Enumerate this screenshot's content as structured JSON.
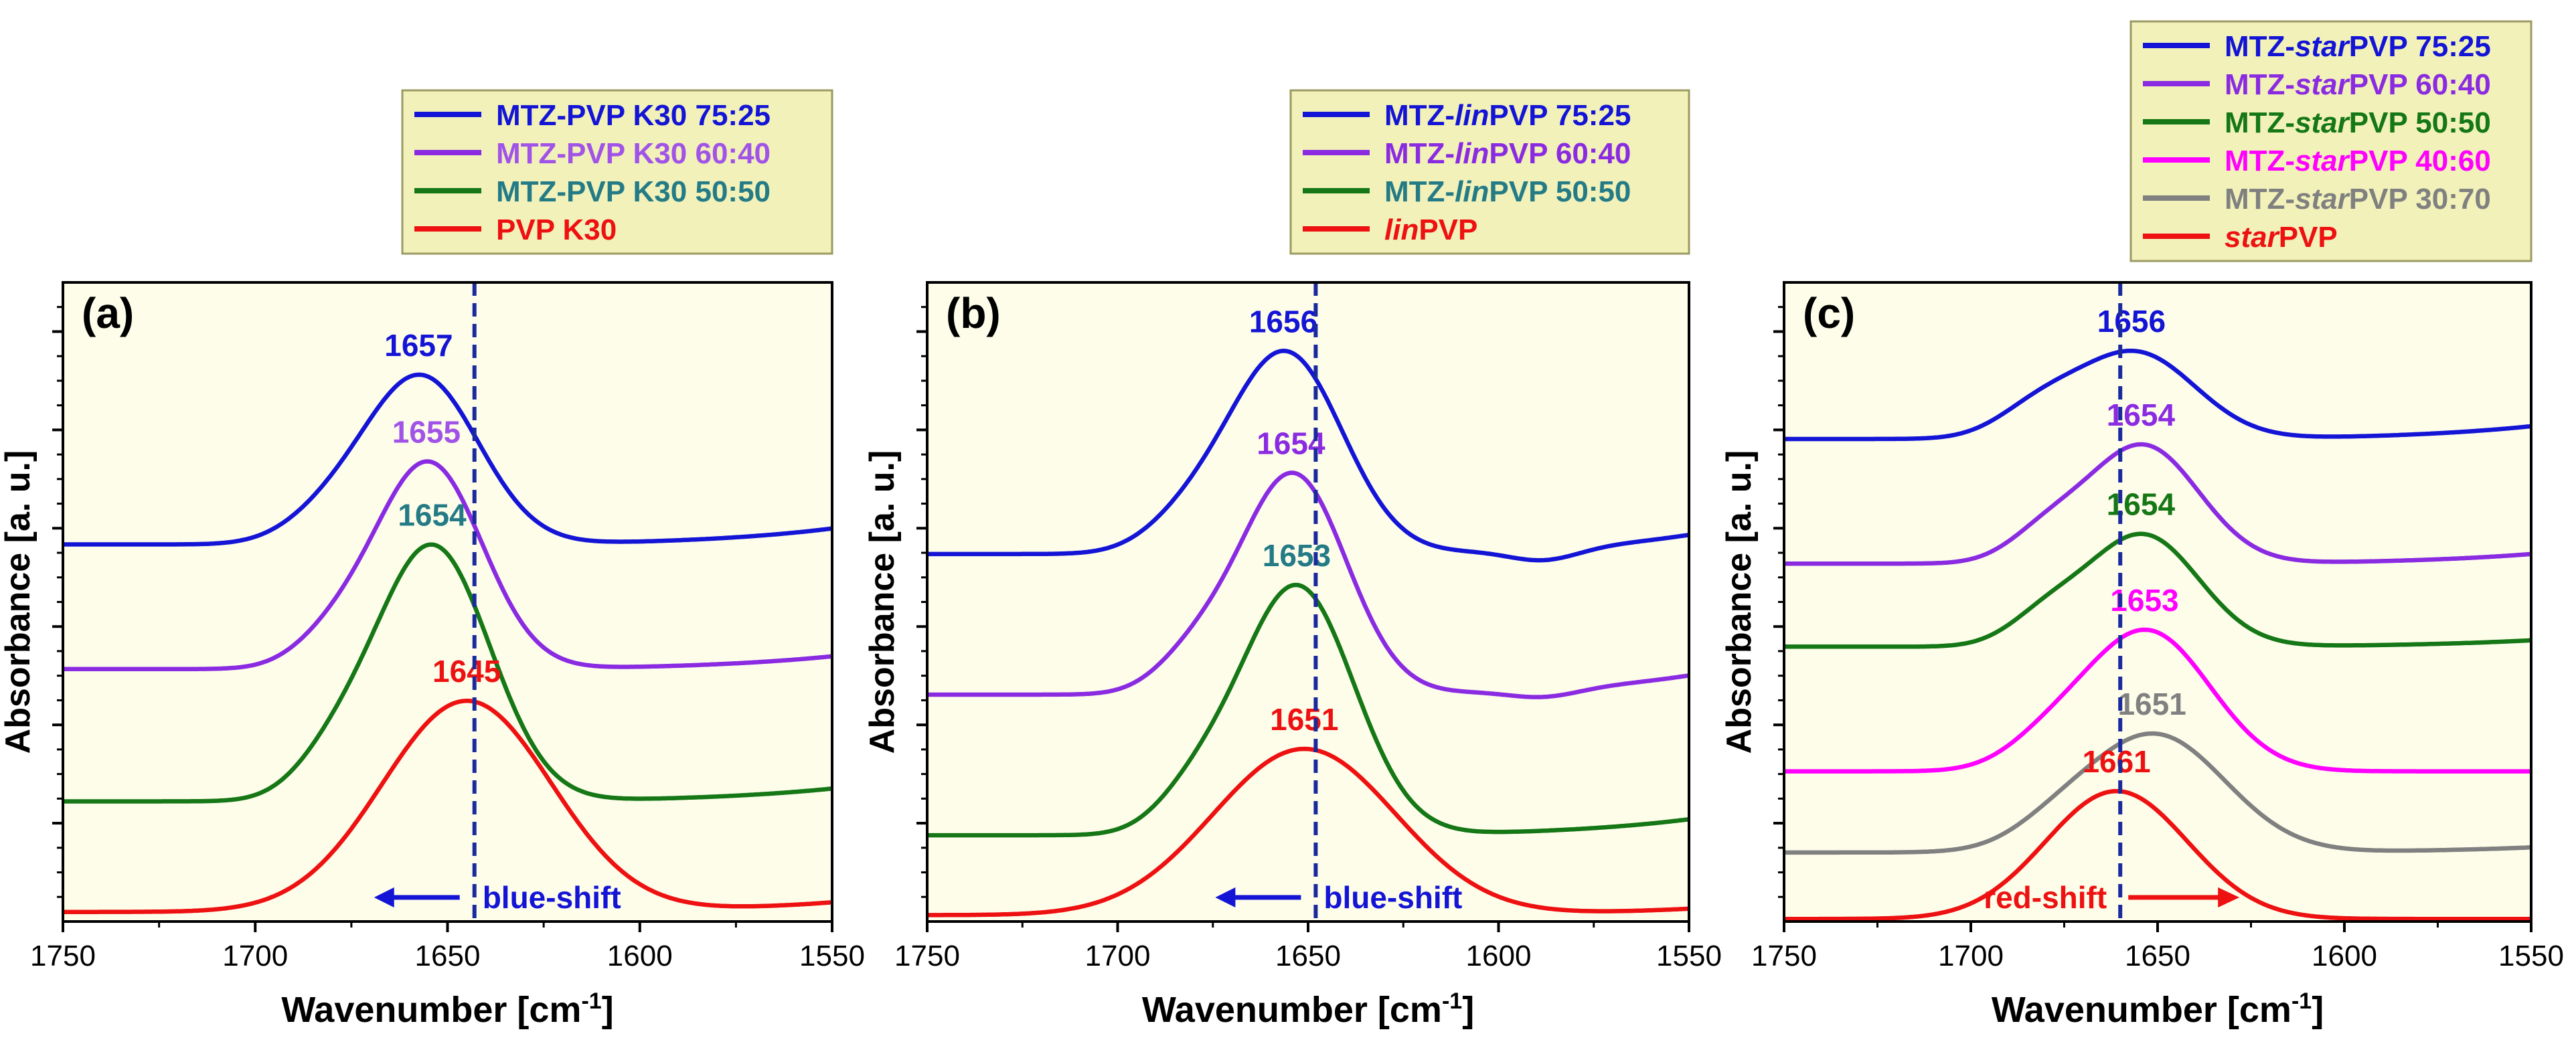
{
  "colors": {
    "plot_bg": "#fdfdea",
    "legend_bg": "#f1f1b9",
    "legend_border": "#9a9a62",
    "axis": "#000000",
    "vline": "#1a2a9c",
    "arrow_blue": "#1414d6",
    "arrow_red": "#ee1111"
  },
  "chart_data": [
    {
      "panel": "(a)",
      "type": "line",
      "xlabel": "Wavenumber [cm-1]",
      "ylabel": "Absorbance [a. u.]",
      "xlim": [
        1750,
        1550
      ],
      "ylim": [
        0,
        1
      ],
      "xticks": [
        1750,
        1700,
        1650,
        1600,
        1550
      ],
      "xtick_labels": [
        "1750",
        "1700",
        "1650",
        "1600",
        "1550"
      ],
      "vline_x": 1643,
      "shift_label": "blue-shift",
      "shift_direction": "left",
      "legend_position": "above-right",
      "series": [
        {
          "name": "MTZ-PVP K30 75:25",
          "legend": [
            {
              "t": "MTZ-PVP K30 75:25",
              "i": false
            }
          ],
          "color": "#1414d6",
          "label_color": "#1414d6",
          "baseline": 0.59,
          "end_rise": 0.025,
          "dip": 0.0,
          "peak": 1657,
          "peak_label": "1657",
          "components": [
            {
              "c": 1657,
              "a": 0.263,
              "w": 15
            },
            {
              "c": 1682,
              "a": 0.03,
              "w": 11
            }
          ]
        },
        {
          "name": "MTZ-PVP K30 60:40",
          "legend": [
            {
              "t": "MTZ-PVP K30 60:40",
              "i": false
            }
          ],
          "color": "#8a2be2",
          "label_color": "#a153e8",
          "baseline": 0.395,
          "end_rise": 0.02,
          "dip": 0.0,
          "peak": 1655,
          "peak_label": "1655",
          "components": [
            {
              "c": 1655,
              "a": 0.323,
              "w": 14
            },
            {
              "c": 1680,
              "a": 0.038,
              "w": 10
            }
          ]
        },
        {
          "name": "MTZ-PVP K30 50:50",
          "legend": [
            {
              "t": "MTZ-PVP K30 50:50",
              "i": false
            }
          ],
          "color": "#157715",
          "label_color": "#247b86",
          "baseline": 0.188,
          "end_rise": 0.02,
          "dip": 0.0,
          "peak": 1654,
          "peak_label": "1654",
          "components": [
            {
              "c": 1654,
              "a": 0.4,
              "w": 15
            },
            {
              "c": 1680,
              "a": 0.048,
              "w": 10
            }
          ]
        },
        {
          "name": "PVP K30",
          "legend": [
            {
              "t": "PVP K30",
              "i": false
            }
          ],
          "color": "#ee1111",
          "label_color": "#ee1111",
          "baseline": 0.015,
          "end_rise": 0.015,
          "dip": 0.0,
          "peak": 1645,
          "peak_label": "1645",
          "components": [
            {
              "c": 1645,
              "a": 0.33,
              "w": 22
            }
          ]
        }
      ]
    },
    {
      "panel": "(b)",
      "type": "line",
      "xlabel": "Wavenumber [cm-1]",
      "ylabel": "Absorbance [a. u.]",
      "xlim": [
        1750,
        1550
      ],
      "ylim": [
        0,
        1
      ],
      "xticks": [
        1750,
        1700,
        1650,
        1600,
        1550
      ],
      "xtick_labels": [
        "1750",
        "1700",
        "1650",
        "1600",
        "1550"
      ],
      "vline_x": 1648,
      "shift_label": "blue-shift",
      "shift_direction": "left",
      "legend_position": "above-right",
      "series": [
        {
          "name": "MTZ-linPVP 75:25",
          "legend": [
            {
              "t": "MTZ-",
              "i": false
            },
            {
              "t": "lin",
              "i": true
            },
            {
              "t": "PVP 75:25",
              "i": false
            }
          ],
          "color": "#1414d6",
          "label_color": "#1414d6",
          "baseline": 0.575,
          "end_rise": 0.03,
          "dip": 0.018,
          "peak": 1656,
          "peak_label": "1656",
          "components": [
            {
              "c": 1656,
              "a": 0.315,
              "w": 15
            },
            {
              "c": 1682,
              "a": 0.04,
              "w": 11
            }
          ]
        },
        {
          "name": "MTZ-linPVP 60:40",
          "legend": [
            {
              "t": "MTZ-",
              "i": false
            },
            {
              "t": "lin",
              "i": true
            },
            {
              "t": "PVP 60:40",
              "i": false
            }
          ],
          "color": "#8a2be2",
          "label_color": "#8a2be2",
          "baseline": 0.355,
          "end_rise": 0.03,
          "dip": 0.012,
          "peak": 1654,
          "peak_label": "1654",
          "components": [
            {
              "c": 1654,
              "a": 0.345,
              "w": 14
            },
            {
              "c": 1680,
              "a": 0.05,
              "w": 10
            }
          ]
        },
        {
          "name": "MTZ-linPVP 50:50",
          "legend": [
            {
              "t": "MTZ-",
              "i": false
            },
            {
              "t": "lin",
              "i": true
            },
            {
              "t": "PVP 50:50",
              "i": false
            }
          ],
          "color": "#157715",
          "label_color": "#247b86",
          "baseline": 0.135,
          "end_rise": 0.025,
          "dip": 0.0,
          "peak": 1653,
          "peak_label": "1653",
          "components": [
            {
              "c": 1653,
              "a": 0.39,
              "w": 15
            },
            {
              "c": 1680,
              "a": 0.05,
              "w": 10
            }
          ]
        },
        {
          "name": "linPVP",
          "legend": [
            {
              "t": "lin",
              "i": true
            },
            {
              "t": "PVP",
              "i": false
            }
          ],
          "color": "#ee1111",
          "label_color": "#ee1111",
          "baseline": 0.01,
          "end_rise": 0.01,
          "dip": 0.0,
          "peak": 1651,
          "peak_label": "1651",
          "components": [
            {
              "c": 1651,
              "a": 0.26,
              "w": 24
            }
          ]
        }
      ]
    },
    {
      "panel": "(c)",
      "type": "line",
      "xlabel": "Wavenumber [cm-1]",
      "ylabel": "Absorbance [a. u.]",
      "xlim": [
        1750,
        1550
      ],
      "ylim": [
        0,
        1
      ],
      "xticks": [
        1750,
        1700,
        1650,
        1600,
        1550
      ],
      "xtick_labels": [
        "1750",
        "1700",
        "1650",
        "1600",
        "1550"
      ],
      "vline_x": 1660,
      "shift_label": "red-shift",
      "shift_direction": "right",
      "legend_position": "above-right",
      "series": [
        {
          "name": "MTZ-starPVP 75:25",
          "legend": [
            {
              "t": "MTZ-",
              "i": false
            },
            {
              "t": "star",
              "i": true
            },
            {
              "t": "PVP 75:25",
              "i": false
            }
          ],
          "color": "#1414d6",
          "label_color": "#1414d6",
          "baseline": 0.755,
          "end_rise": 0.02,
          "dip": 0.0,
          "peak": 1656,
          "peak_label": "1656",
          "components": [
            {
              "c": 1656,
              "a": 0.135,
              "w": 16
            },
            {
              "c": 1682,
              "a": 0.04,
              "w": 11
            }
          ]
        },
        {
          "name": "MTZ-starPVP 60:40",
          "legend": [
            {
              "t": "MTZ-",
              "i": false
            },
            {
              "t": "star",
              "i": true
            },
            {
              "t": "PVP 60:40",
              "i": false
            }
          ],
          "color": "#8a2be2",
          "label_color": "#8a2be2",
          "baseline": 0.56,
          "end_rise": 0.015,
          "dip": 0.0,
          "peak": 1654,
          "peak_label": "1654",
          "components": [
            {
              "c": 1654,
              "a": 0.185,
              "w": 15
            },
            {
              "c": 1680,
              "a": 0.04,
              "w": 10
            }
          ]
        },
        {
          "name": "MTZ-starPVP 50:50",
          "legend": [
            {
              "t": "MTZ-",
              "i": false
            },
            {
              "t": "star",
              "i": true
            },
            {
              "t": "PVP 50:50",
              "i": false
            }
          ],
          "color": "#157715",
          "label_color": "#157715",
          "baseline": 0.43,
          "end_rise": 0.01,
          "dip": 0.0,
          "peak": 1654,
          "peak_label": "1654",
          "components": [
            {
              "c": 1654,
              "a": 0.175,
              "w": 15
            },
            {
              "c": 1680,
              "a": 0.04,
              "w": 10
            }
          ]
        },
        {
          "name": "MTZ-starPVP 40:60",
          "legend": [
            {
              "t": "MTZ-",
              "i": false
            },
            {
              "t": "star",
              "i": true
            },
            {
              "t": "PVP 40:60",
              "i": false
            }
          ],
          "color": "#ff00ff",
          "label_color": "#ff00ff",
          "baseline": 0.235,
          "end_rise": 0.0,
          "dip": 0.0,
          "peak": 1653,
          "peak_label": "1653",
          "components": [
            {
              "c": 1653,
              "a": 0.22,
              "w": 17
            },
            {
              "c": 1680,
              "a": 0.03,
              "w": 11
            }
          ]
        },
        {
          "name": "MTZ-starPVP 30:70",
          "legend": [
            {
              "t": "MTZ-",
              "i": false
            },
            {
              "t": "star",
              "i": true
            },
            {
              "t": "PVP 30:70",
              "i": false
            }
          ],
          "color": "#808080",
          "label_color": "#808080",
          "baseline": 0.108,
          "end_rise": 0.008,
          "dip": 0.0,
          "peak": 1651,
          "peak_label": "1651",
          "components": [
            {
              "c": 1651,
              "a": 0.185,
              "w": 19
            },
            {
              "c": 1678,
              "a": 0.02,
              "w": 11
            }
          ]
        },
        {
          "name": "starPVP",
          "legend": [
            {
              "t": "star",
              "i": true
            },
            {
              "t": "PVP",
              "i": false
            }
          ],
          "color": "#ee1111",
          "label_color": "#ee1111",
          "baseline": 0.004,
          "end_rise": 0.0,
          "dip": 0.0,
          "peak": 1661,
          "peak_label": "1661",
          "components": [
            {
              "c": 1661,
              "a": 0.2,
              "w": 19
            }
          ]
        }
      ]
    }
  ]
}
